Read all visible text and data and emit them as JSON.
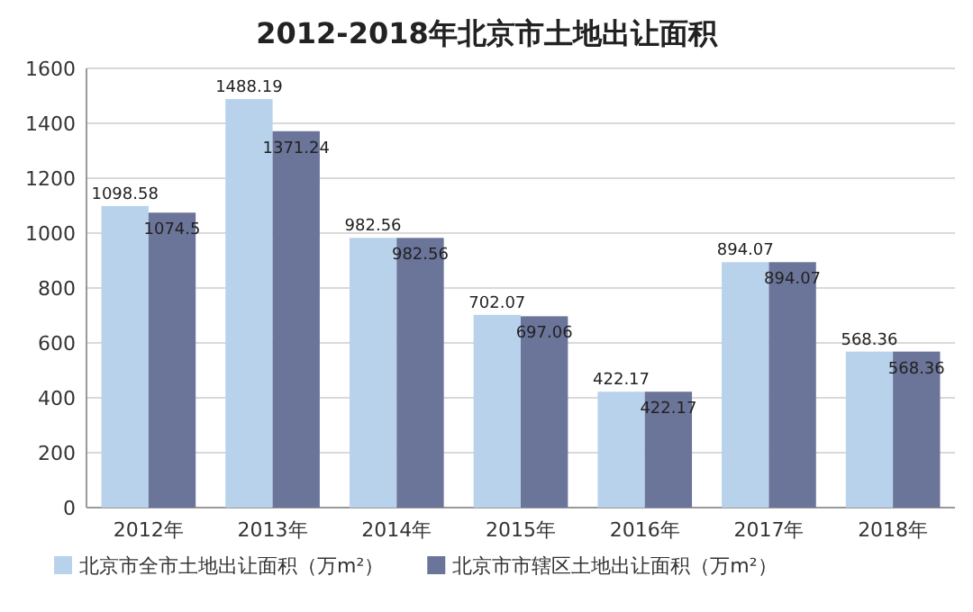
{
  "chart_data": {
    "type": "bar",
    "title": "2012-2018年北京市土地出让面积",
    "categories": [
      "2012年",
      "2013年",
      "2014年",
      "2015年",
      "2016年",
      "2017年",
      "2018年"
    ],
    "series": [
      {
        "name": "北京市全市土地出让面积（万m²）",
        "color": "#b8d2ec",
        "values": [
          1098.58,
          1488.19,
          982.56,
          702.07,
          422.17,
          894.07,
          568.36
        ]
      },
      {
        "name": "北京市市辖区土地出让面积（万m²）",
        "color": "#6b7499",
        "values": [
          1074.5,
          1371.24,
          982.56,
          697.06,
          422.17,
          894.07,
          568.36
        ]
      }
    ],
    "ylim": [
      0,
      1600
    ],
    "yticks": [
      0,
      200,
      400,
      600,
      800,
      1000,
      1200,
      1400,
      1600
    ],
    "grid": "y",
    "legend": "bottom",
    "data_labels": true
  }
}
